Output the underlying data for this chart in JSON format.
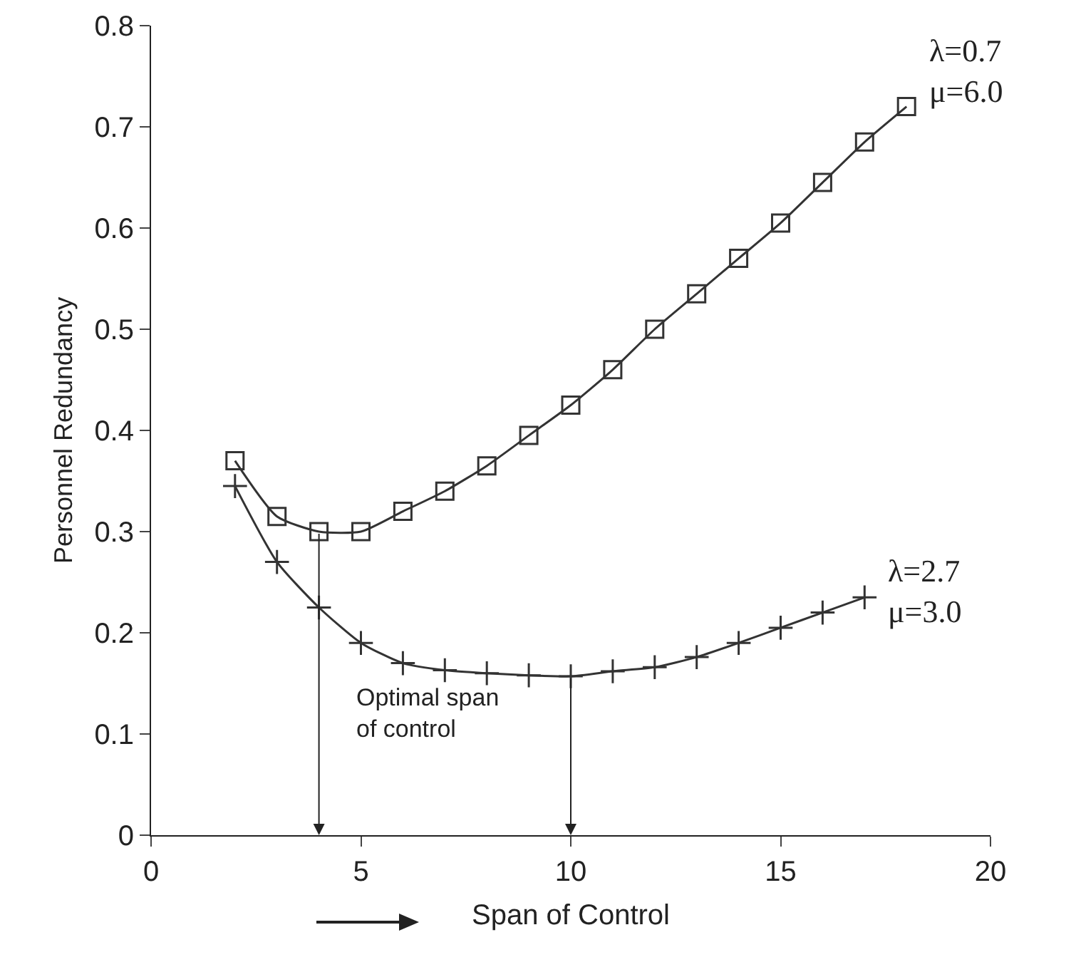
{
  "chart_data": {
    "type": "line",
    "xlabel": "Span of Control",
    "ylabel": "Personnel Redundancy",
    "x": [
      2,
      3,
      4,
      5,
      6,
      7,
      8,
      9,
      10,
      11,
      12,
      13,
      14,
      15,
      16,
      17,
      18
    ],
    "series": [
      {
        "name": "λ=0.7\nμ=6.0",
        "color": "#333333",
        "marker": "square",
        "values": [
          0.37,
          0.315,
          0.3,
          0.3,
          0.32,
          0.34,
          0.365,
          0.395,
          0.425,
          0.46,
          0.5,
          0.535,
          0.57,
          0.605,
          0.645,
          0.685,
          0.72
        ]
      },
      {
        "name": "λ=2.7\nμ=3.0",
        "color": "#333333",
        "marker": "cross",
        "values": [
          0.345,
          0.27,
          0.225,
          0.19,
          0.17,
          0.163,
          0.16,
          0.158,
          0.157,
          0.162,
          0.166,
          0.176,
          0.19,
          0.205,
          0.22,
          0.235,
          null
        ]
      }
    ],
    "annotations": [
      "Optimal span\nof control"
    ],
    "xlim": [
      0,
      20
    ],
    "xticks": [
      0,
      5,
      10,
      15,
      20
    ],
    "ylim": [
      0,
      0.8
    ],
    "yticks": [
      0,
      0.1,
      0.2,
      0.3,
      0.4,
      0.5,
      0.6,
      0.7,
      0.8
    ],
    "grid": false,
    "legend": false,
    "line_style": "solid"
  }
}
